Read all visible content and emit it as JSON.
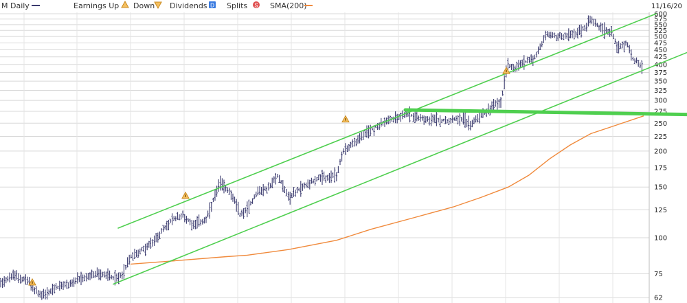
{
  "legend": {
    "title": "M Daily",
    "earnings_up": "Earnings Up",
    "down": "Down",
    "dividends": "Dividends",
    "dividends_badge": "D",
    "splits": "Splits",
    "splits_badge": "S",
    "sma": "SMA(200)"
  },
  "date_label": "11/16/20",
  "colors": {
    "price_bars": "#3a3a6e",
    "sma": "#f08a3c",
    "trendline": "#4fcf4f",
    "grid": "#d8d8d8",
    "legend_title_line": "#3a3a6e",
    "earnings_marker": "#e0a030",
    "dividend_badge": "#3a7be0",
    "split_badge": "#e05050"
  },
  "chart_data": {
    "type": "bar",
    "scale": "log",
    "ylim": [
      62,
      600
    ],
    "y_ticks": [
      600,
      575,
      550,
      525,
      500,
      475,
      450,
      425,
      400,
      375,
      350,
      325,
      300,
      275,
      250,
      225,
      200,
      175,
      150,
      125,
      100,
      75,
      62
    ],
    "grid": true,
    "series": [
      {
        "type": "ohlc",
        "close_path": [
          [
            0,
            70
          ],
          [
            20,
            74
          ],
          [
            40,
            71
          ],
          [
            50,
            66
          ],
          [
            60,
            63
          ],
          [
            70,
            64
          ],
          [
            80,
            67
          ],
          [
            100,
            69
          ],
          [
            120,
            72
          ],
          [
            140,
            75
          ],
          [
            160,
            74
          ],
          [
            170,
            72
          ],
          [
            180,
            76
          ],
          [
            190,
            86
          ],
          [
            205,
            90
          ],
          [
            220,
            95
          ],
          [
            235,
            105
          ],
          [
            250,
            115
          ],
          [
            265,
            120
          ],
          [
            280,
            112
          ],
          [
            300,
            115
          ],
          [
            320,
            155
          ],
          [
            335,
            145
          ],
          [
            350,
            120
          ],
          [
            360,
            126
          ],
          [
            375,
            145
          ],
          [
            390,
            148
          ],
          [
            405,
            165
          ],
          [
            420,
            138
          ],
          [
            440,
            150
          ],
          [
            460,
            160
          ],
          [
            480,
            162
          ],
          [
            490,
            165
          ],
          [
            500,
            200
          ],
          [
            510,
            210
          ],
          [
            525,
            222
          ],
          [
            540,
            238
          ],
          [
            560,
            252
          ],
          [
            575,
            260
          ],
          [
            590,
            270
          ],
          [
            610,
            262
          ],
          [
            630,
            258
          ],
          [
            650,
            256
          ],
          [
            670,
            262
          ],
          [
            685,
            248
          ],
          [
            700,
            268
          ],
          [
            715,
            282
          ],
          [
            730,
            300
          ],
          [
            738,
            400
          ],
          [
            750,
            390
          ],
          [
            765,
            410
          ],
          [
            780,
            425
          ],
          [
            795,
            510
          ],
          [
            810,
            500
          ],
          [
            830,
            505
          ],
          [
            845,
            520
          ],
          [
            860,
            570
          ],
          [
            875,
            530
          ],
          [
            890,
            520
          ],
          [
            900,
            455
          ],
          [
            912,
            480
          ],
          [
            920,
            420
          ],
          [
            930,
            405
          ],
          [
            937,
            385
          ]
        ]
      },
      {
        "name": "SMA(200)",
        "type": "line",
        "x_range": [
          190,
          937
        ],
        "points": [
          [
            190,
            81
          ],
          [
            250,
            83
          ],
          [
            330,
            86
          ],
          [
            360,
            87
          ],
          [
            420,
            91
          ],
          [
            490,
            98
          ],
          [
            540,
            107
          ],
          [
            600,
            117
          ],
          [
            660,
            128
          ],
          [
            700,
            138
          ],
          [
            740,
            150
          ],
          [
            770,
            165
          ],
          [
            800,
            188
          ],
          [
            830,
            210
          ],
          [
            860,
            230
          ],
          [
            890,
            243
          ],
          [
            937,
            265
          ]
        ]
      }
    ],
    "trendlines": [
      {
        "from": [
          172,
          108
        ],
        "to": [
          955,
          600
        ]
      },
      {
        "from": [
          165,
          69
        ],
        "to": [
          1000,
          440
        ]
      },
      {
        "from": [
          590,
          278
        ],
        "to": [
          1000,
          268
        ]
      }
    ],
    "earnings_markers": [
      {
        "x": 47,
        "y": 70
      },
      {
        "x": 270,
        "y": 140
      },
      {
        "x": 503,
        "y": 258
      },
      {
        "x": 737,
        "y": 380
      }
    ]
  }
}
